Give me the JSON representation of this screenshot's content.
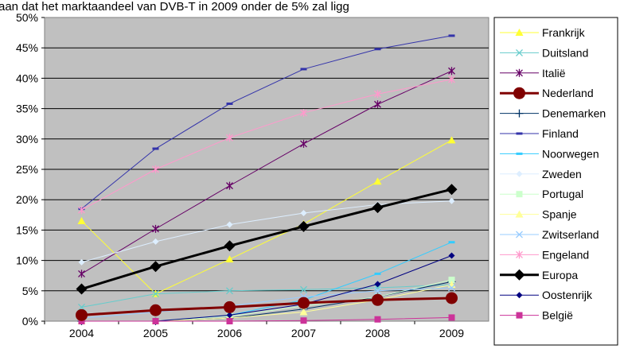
{
  "caption": "aan dat het marktaandeel van DVB-T in 2009 onder de 5% zal ligg",
  "chart_data": {
    "type": "line",
    "title": "",
    "xlabel": "",
    "ylabel": "",
    "categories": [
      "2004",
      "2005",
      "2006",
      "2007",
      "2008",
      "2009"
    ],
    "ylim": [
      0,
      50
    ],
    "yticks": [
      0,
      5,
      10,
      15,
      20,
      25,
      30,
      35,
      40,
      45,
      50
    ],
    "ytick_labels": [
      "0%",
      "5%",
      "10%",
      "15%",
      "20%",
      "25%",
      "30%",
      "35%",
      "40%",
      "45%",
      "50%"
    ],
    "grid": true,
    "plot_background": "#c0c0c0",
    "legend_position": "right",
    "series": [
      {
        "name": "Frankrijk",
        "color": "#ffff33",
        "marker": "triangle",
        "width": 1,
        "values": [
          16.5,
          4.5,
          10.2,
          16,
          23,
          29.8
        ]
      },
      {
        "name": "Duitsland",
        "color": "#66cccc",
        "marker": "x",
        "width": 1,
        "values": [
          2.3,
          4.5,
          5.0,
          5.2,
          5.5,
          6.0
        ]
      },
      {
        "name": "Italië",
        "color": "#660066",
        "marker": "star",
        "width": 1,
        "values": [
          7.8,
          15.2,
          22.3,
          29.2,
          35.7,
          41.2
        ]
      },
      {
        "name": "Nederland",
        "color": "#800000",
        "marker": "circle",
        "width": 3,
        "values": [
          1.0,
          1.8,
          2.3,
          3.0,
          3.5,
          3.8
        ]
      },
      {
        "name": "Denemarken",
        "color": "#003366",
        "marker": "plus",
        "width": 1,
        "values": [
          0,
          0,
          0.5,
          2.0,
          4.0,
          6.5
        ]
      },
      {
        "name": "Finland",
        "color": "#3333aa",
        "marker": "dash",
        "width": 1,
        "values": [
          18.5,
          28.4,
          35.8,
          41.5,
          44.8,
          47.0
        ]
      },
      {
        "name": "Noorwegen",
        "color": "#33ccff",
        "marker": "dash",
        "width": 1,
        "values": [
          0,
          0,
          1.0,
          3.5,
          7.8,
          13.0
        ]
      },
      {
        "name": "Zweden",
        "color": "#ddeeff",
        "marker": "diamond-small",
        "width": 1,
        "values": [
          9.7,
          13.1,
          15.9,
          17.8,
          19.2,
          19.8
        ]
      },
      {
        "name": "Portugal",
        "color": "#ccffcc",
        "marker": "square",
        "width": 1,
        "values": [
          0,
          0,
          0.8,
          2.5,
          4.0,
          6.8
        ]
      },
      {
        "name": "Spanje",
        "color": "#ffff99",
        "marker": "triangle",
        "width": 1,
        "values": [
          0,
          0,
          0.5,
          1.5,
          3.5,
          6.0
        ]
      },
      {
        "name": "Zwitserland",
        "color": "#99ccff",
        "marker": "x",
        "width": 1,
        "values": [
          0.5,
          1.5,
          2.5,
          4.0,
          5.0,
          5.5
        ]
      },
      {
        "name": "Engeland",
        "color": "#ff99cc",
        "marker": "star",
        "width": 1,
        "values": [
          18.3,
          25.0,
          30.2,
          34.3,
          37.4,
          39.8
        ]
      },
      {
        "name": "Europa",
        "color": "#000000",
        "marker": "diamond",
        "width": 3,
        "values": [
          5.3,
          9.0,
          12.4,
          15.6,
          18.7,
          21.7
        ]
      },
      {
        "name": "Oostenrijk",
        "color": "#000080",
        "marker": "diamond-small",
        "width": 1,
        "values": [
          0,
          0,
          1.0,
          2.8,
          6.1,
          10.8
        ]
      },
      {
        "name": "België",
        "color": "#cc3399",
        "marker": "square",
        "width": 1,
        "values": [
          0,
          0,
          0,
          0.1,
          0.3,
          0.6
        ]
      }
    ]
  }
}
